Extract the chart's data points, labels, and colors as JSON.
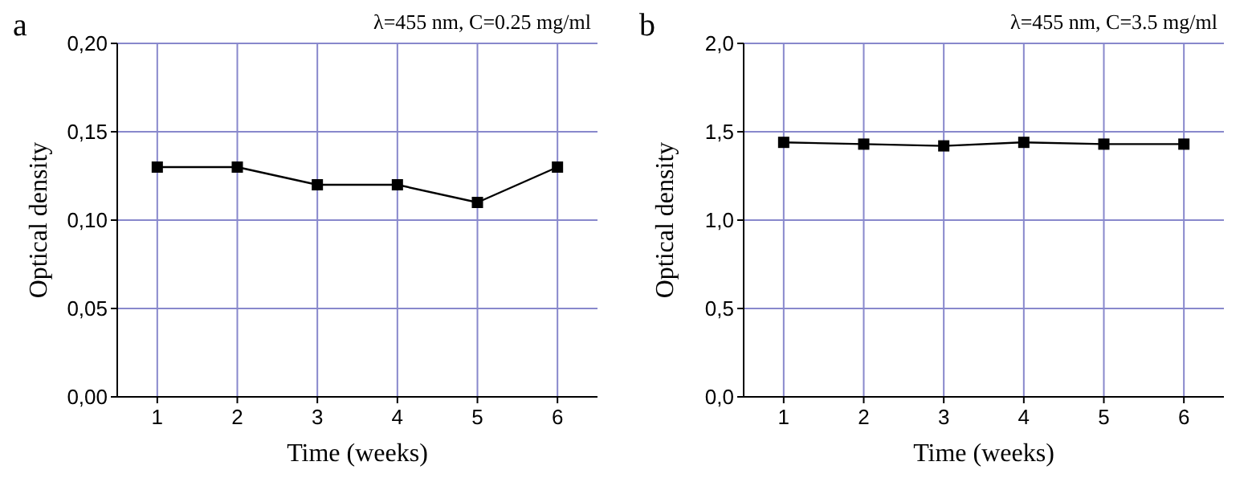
{
  "chart_data": [
    {
      "type": "line",
      "title": "a",
      "subtitle": "λ=455 nm, C=0.25 mg/ml",
      "xlabel": "Time (weeks)",
      "ylabel": "Optical density",
      "x": [
        1,
        2,
        3,
        4,
        5,
        6
      ],
      "series": [
        {
          "color": "#000000",
          "values": [
            0.13,
            0.13,
            0.12,
            0.12,
            0.11,
            0.13
          ]
        }
      ],
      "xlim": [
        0.5,
        6.5
      ],
      "xticks": [
        1,
        2,
        3,
        4,
        5,
        6
      ],
      "ylim": [
        0,
        0.2
      ],
      "yticks": [
        {
          "value": 0,
          "label": "0,00"
        },
        {
          "value": 0.05,
          "label": "0,05"
        },
        {
          "value": 0.1,
          "label": "0,10"
        },
        {
          "value": 0.15,
          "label": "0,15"
        },
        {
          "value": 0.2,
          "label": "0,20"
        }
      ],
      "grid": true,
      "marker": "square",
      "line_style": "solid"
    },
    {
      "type": "line",
      "title": "b",
      "subtitle": "λ=455 nm, C=3.5 mg/ml",
      "xlabel": "Time (weeks)",
      "ylabel": "Optical density",
      "x": [
        1,
        2,
        3,
        4,
        5,
        6
      ],
      "series": [
        {
          "color": "#000000",
          "values": [
            1.44,
            1.43,
            1.42,
            1.44,
            1.43,
            1.43
          ]
        }
      ],
      "xlim": [
        0.5,
        6.5
      ],
      "xticks": [
        1,
        2,
        3,
        4,
        5,
        6
      ],
      "ylim": [
        0,
        2
      ],
      "yticks": [
        {
          "value": 0,
          "label": "0,0"
        },
        {
          "value": 0.5,
          "label": "0,5"
        },
        {
          "value": 1,
          "label": "1,0"
        },
        {
          "value": 1.5,
          "label": "1,5"
        },
        {
          "value": 2,
          "label": "2,0"
        }
      ],
      "grid": true,
      "marker": "square",
      "line_style": "solid"
    }
  ]
}
